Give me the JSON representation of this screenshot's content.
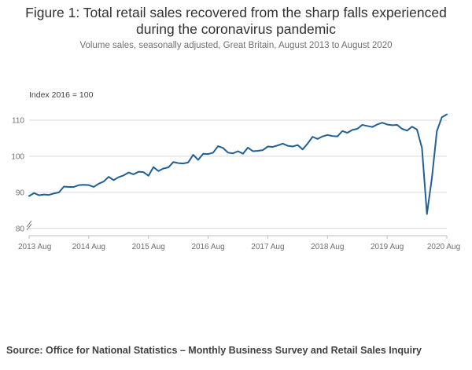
{
  "title_lines": [
    "Figure 1: Total retail sales recovered from the sharp falls experienced",
    "during the coronavirus pandemic"
  ],
  "subtitle": "Volume sales, seasonally adjusted, Great Britain, August 2013 to August 2020",
  "source": "Source: Office for National Statistics – Monthly Business Survey and Retail Sales Inquiry",
  "colors": {
    "line": "#206095",
    "grid": "#d9d9d9",
    "axis": "#bdbdbd"
  },
  "chart_data": {
    "type": "line",
    "ylabel": "Index 2016 = 100",
    "ylim": [
      78,
      115
    ],
    "yticks": [
      80,
      90,
      100,
      110
    ],
    "xticks": [
      {
        "label": "2013 Aug",
        "index": 0
      },
      {
        "label": "2014 Aug",
        "index": 12
      },
      {
        "label": "2015 Aug",
        "index": 24
      },
      {
        "label": "2016 Aug",
        "index": 36
      },
      {
        "label": "2017 Aug",
        "index": 48
      },
      {
        "label": "2018 Aug",
        "index": 60
      },
      {
        "label": "2019 Aug",
        "index": 72
      },
      {
        "label": "2020 Aug",
        "index": 84
      }
    ],
    "grid": true,
    "axis_break": true,
    "series": [
      {
        "start": "2013 Aug",
        "frequency": "monthly",
        "values": [
          89.0,
          89.8,
          89.2,
          89.4,
          89.3,
          89.7,
          90.0,
          91.6,
          91.5,
          91.5,
          92.0,
          92.1,
          92.0,
          91.5,
          92.4,
          93.0,
          94.3,
          93.4,
          94.2,
          94.7,
          95.5,
          95.0,
          95.7,
          95.6,
          94.6,
          97.0,
          95.9,
          96.6,
          96.9,
          98.4,
          98.1,
          98.0,
          98.3,
          100.4,
          99.0,
          100.7,
          100.6,
          101.0,
          102.8,
          102.3,
          101.0,
          100.8,
          101.4,
          100.7,
          102.4,
          101.4,
          101.5,
          101.7,
          102.7,
          102.6,
          103.0,
          103.5,
          102.9,
          102.7,
          103.1,
          101.9,
          103.5,
          105.4,
          104.8,
          105.5,
          105.9,
          105.6,
          105.5,
          107.0,
          106.5,
          107.3,
          107.6,
          108.7,
          108.4,
          108.1,
          108.8,
          109.3,
          108.8,
          108.6,
          108.7,
          107.6,
          107.1,
          108.2,
          107.4,
          102.3,
          84.0,
          94.0,
          107.0,
          110.8,
          111.6
        ]
      }
    ]
  }
}
